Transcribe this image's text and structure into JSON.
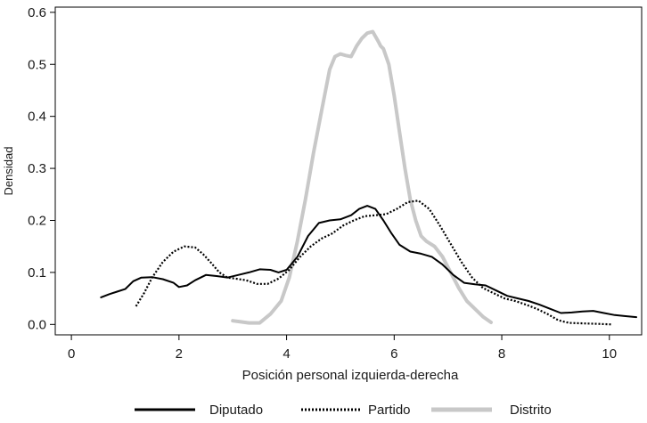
{
  "chart_data": {
    "type": "line",
    "xlabel": "Posición personal izquierda-derecha",
    "ylabel": "Densidad",
    "xlim": [
      -0.3,
      10.6
    ],
    "ylim": [
      -0.02,
      0.61
    ],
    "xticks": [
      0,
      2,
      4,
      6,
      8,
      10
    ],
    "yticks": [
      0.0,
      0.1,
      0.2,
      0.3,
      0.4,
      0.5,
      0.6
    ],
    "xtick_labels": [
      "0",
      "2",
      "4",
      "6",
      "8",
      "10"
    ],
    "ytick_labels": [
      "0.0",
      "0.1",
      "0.2",
      "0.3",
      "0.4",
      "0.5",
      "0.6"
    ],
    "grid": false,
    "legend_position": "bottom",
    "series": [
      {
        "name": "Diputado",
        "color": "#000000",
        "style": "solid",
        "x": [
          0.55,
          0.7,
          0.85,
          1.0,
          1.15,
          1.3,
          1.5,
          1.7,
          1.9,
          2.0,
          2.15,
          2.3,
          2.5,
          2.7,
          2.9,
          3.1,
          3.3,
          3.5,
          3.7,
          3.85,
          4.0,
          4.2,
          4.4,
          4.6,
          4.8,
          5.0,
          5.2,
          5.35,
          5.5,
          5.65,
          5.8,
          5.95,
          6.1,
          6.3,
          6.5,
          6.7,
          6.9,
          7.1,
          7.3,
          7.5,
          7.7,
          7.9,
          8.1,
          8.3,
          8.5,
          8.7,
          8.9,
          9.1,
          9.3,
          9.5,
          9.7,
          9.9,
          10.1,
          10.3,
          10.5
        ],
        "y": [
          0.052,
          0.058,
          0.063,
          0.068,
          0.083,
          0.09,
          0.091,
          0.087,
          0.08,
          0.072,
          0.075,
          0.085,
          0.095,
          0.093,
          0.09,
          0.095,
          0.1,
          0.106,
          0.105,
          0.1,
          0.105,
          0.13,
          0.17,
          0.195,
          0.2,
          0.202,
          0.21,
          0.222,
          0.228,
          0.222,
          0.2,
          0.175,
          0.153,
          0.14,
          0.136,
          0.13,
          0.115,
          0.095,
          0.08,
          0.077,
          0.075,
          0.065,
          0.055,
          0.05,
          0.045,
          0.038,
          0.03,
          0.022,
          0.023,
          0.025,
          0.026,
          0.022,
          0.018,
          0.016,
          0.014
        ]
      },
      {
        "name": "Partido",
        "color": "#000000",
        "style": "dotted",
        "x": [
          1.2,
          1.35,
          1.5,
          1.7,
          1.9,
          2.1,
          2.3,
          2.45,
          2.6,
          2.75,
          2.9,
          3.05,
          3.25,
          3.45,
          3.65,
          3.85,
          4.05,
          4.25,
          4.45,
          4.65,
          4.85,
          5.05,
          5.25,
          5.45,
          5.65,
          5.85,
          6.05,
          6.25,
          6.45,
          6.65,
          6.85,
          7.05,
          7.25,
          7.45,
          7.65,
          7.85,
          8.05,
          8.25,
          8.45,
          8.65,
          8.85,
          9.05,
          9.25,
          9.5,
          9.8,
          10.05
        ],
        "y": [
          0.035,
          0.06,
          0.09,
          0.12,
          0.14,
          0.15,
          0.148,
          0.135,
          0.118,
          0.1,
          0.09,
          0.088,
          0.085,
          0.078,
          0.078,
          0.088,
          0.105,
          0.13,
          0.15,
          0.165,
          0.175,
          0.19,
          0.2,
          0.208,
          0.21,
          0.212,
          0.222,
          0.235,
          0.238,
          0.222,
          0.19,
          0.155,
          0.12,
          0.09,
          0.07,
          0.06,
          0.05,
          0.045,
          0.038,
          0.03,
          0.02,
          0.008,
          0.003,
          0.002,
          0.001,
          0.0
        ]
      },
      {
        "name": "Distrito",
        "color": "#c8c8c8",
        "style": "solid",
        "x": [
          3.0,
          3.15,
          3.3,
          3.5,
          3.7,
          3.9,
          4.05,
          4.2,
          4.35,
          4.5,
          4.65,
          4.8,
          4.9,
          5.0,
          5.1,
          5.2,
          5.3,
          5.4,
          5.5,
          5.6,
          5.7,
          5.75,
          5.8,
          5.9,
          6.0,
          6.1,
          6.2,
          6.3,
          6.4,
          6.5,
          6.6,
          6.75,
          6.9,
          7.05,
          7.2,
          7.35,
          7.5,
          7.65,
          7.8
        ],
        "y": [
          0.007,
          0.005,
          0.003,
          0.003,
          0.02,
          0.045,
          0.09,
          0.16,
          0.24,
          0.33,
          0.41,
          0.49,
          0.515,
          0.52,
          0.517,
          0.515,
          0.535,
          0.55,
          0.56,
          0.563,
          0.545,
          0.535,
          0.53,
          0.5,
          0.44,
          0.37,
          0.3,
          0.24,
          0.2,
          0.17,
          0.16,
          0.15,
          0.13,
          0.1,
          0.07,
          0.045,
          0.03,
          0.015,
          0.004
        ]
      }
    ]
  }
}
